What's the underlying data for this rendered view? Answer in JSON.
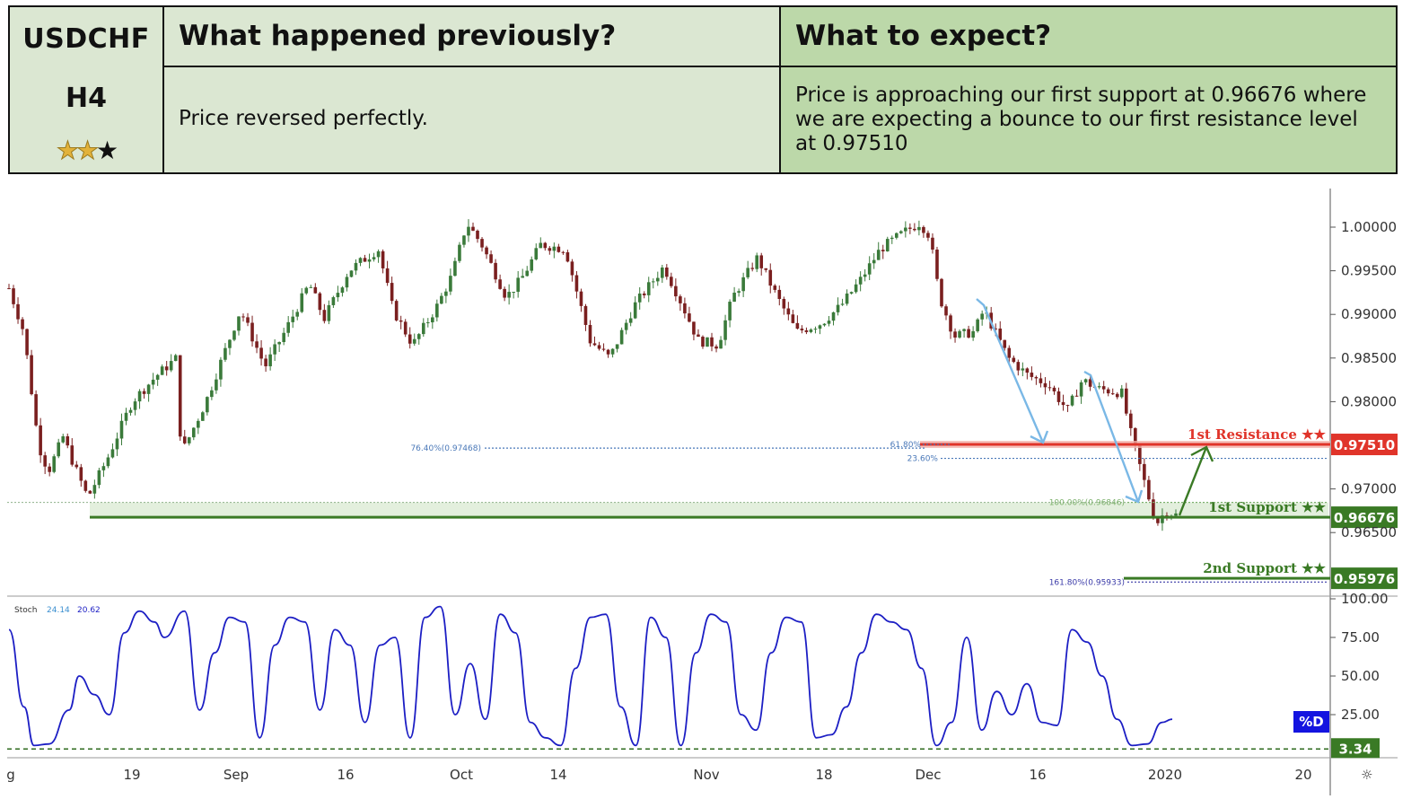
{
  "header": {
    "symbol": "USDCHF",
    "timeframe": "H4",
    "rating": {
      "filled": 2,
      "total": 3
    },
    "previous": {
      "title": "What happened previously?",
      "text": "Price reversed perfectly."
    },
    "expect": {
      "title": "What to expect?",
      "text": "Price is approaching our first support at 0.96676 where we are expecting a bounce to our first resistance level at 0.97510"
    }
  },
  "chart_data": {
    "type": "candlestick",
    "instrument": "USDCHF",
    "y_ticks": [
      "1.00000",
      "0.99500",
      "0.99000",
      "0.98500",
      "0.98000",
      "0.97000",
      "0.96500"
    ],
    "ylim": [
      0.9565,
      1.004
    ],
    "x_ticks": [
      "g",
      "19",
      "Sep",
      "16",
      "Oct",
      "14",
      "Nov",
      "18",
      "Dec",
      "16",
      "2020",
      "20"
    ],
    "price_path": [
      {
        "x": 0,
        "y": 0.993
      },
      {
        "x": 3,
        "y": 0.988
      },
      {
        "x": 6,
        "y": 0.975
      },
      {
        "x": 8,
        "y": 0.972
      },
      {
        "x": 11,
        "y": 0.976
      },
      {
        "x": 13,
        "y": 0.973
      },
      {
        "x": 16,
        "y": 0.969
      },
      {
        "x": 20,
        "y": 0.9735
      },
      {
        "x": 25,
        "y": 0.98
      },
      {
        "x": 30,
        "y": 0.983
      },
      {
        "x": 34,
        "y": 0.985
      },
      {
        "x": 35,
        "y": 0.974
      },
      {
        "x": 40,
        "y": 0.98
      },
      {
        "x": 47,
        "y": 0.9905
      },
      {
        "x": 52,
        "y": 0.984
      },
      {
        "x": 56,
        "y": 0.988
      },
      {
        "x": 61,
        "y": 0.9935
      },
      {
        "x": 64,
        "y": 0.9895
      },
      {
        "x": 69,
        "y": 0.995
      },
      {
        "x": 75,
        "y": 0.9975
      },
      {
        "x": 78,
        "y": 0.9905
      },
      {
        "x": 82,
        "y": 0.9865
      },
      {
        "x": 87,
        "y": 0.991
      },
      {
        "x": 90,
        "y": 0.9945
      },
      {
        "x": 93,
        "y": 1.0005
      },
      {
        "x": 96,
        "y": 0.998
      },
      {
        "x": 101,
        "y": 0.992
      },
      {
        "x": 104,
        "y": 0.994
      },
      {
        "x": 108,
        "y": 0.998
      },
      {
        "x": 113,
        "y": 0.9975
      },
      {
        "x": 118,
        "y": 0.987
      },
      {
        "x": 122,
        "y": 0.985
      },
      {
        "x": 127,
        "y": 0.991
      },
      {
        "x": 133,
        "y": 0.9955
      },
      {
        "x": 136,
        "y": 0.992
      },
      {
        "x": 140,
        "y": 0.987
      },
      {
        "x": 144,
        "y": 0.9865
      },
      {
        "x": 147,
        "y": 0.992
      },
      {
        "x": 152,
        "y": 0.9965
      },
      {
        "x": 156,
        "y": 0.992
      },
      {
        "x": 160,
        "y": 0.988
      },
      {
        "x": 165,
        "y": 0.989
      },
      {
        "x": 169,
        "y": 0.991
      },
      {
        "x": 173,
        "y": 0.994
      },
      {
        "x": 177,
        "y": 0.9975
      },
      {
        "x": 182,
        "y": 0.9995
      },
      {
        "x": 185,
        "y": 1.0005
      },
      {
        "x": 187,
        "y": 0.999
      },
      {
        "x": 189,
        "y": 0.992
      },
      {
        "x": 192,
        "y": 0.9875
      },
      {
        "x": 196,
        "y": 0.988
      },
      {
        "x": 198,
        "y": 0.9905
      },
      {
        "x": 203,
        "y": 0.985
      },
      {
        "x": 207,
        "y": 0.983
      },
      {
        "x": 211,
        "y": 0.982
      },
      {
        "x": 215,
        "y": 0.979
      },
      {
        "x": 218,
        "y": 0.9825
      },
      {
        "x": 221,
        "y": 0.9815
      },
      {
        "x": 226,
        "y": 0.981
      },
      {
        "x": 228,
        "y": 0.976
      },
      {
        "x": 230,
        "y": 0.972
      },
      {
        "x": 233,
        "y": 0.966
      },
      {
        "x": 235,
        "y": 0.9675
      },
      {
        "x": 237,
        "y": 0.967
      }
    ],
    "fib_levels": [
      {
        "label": "76.40%(0.97468)",
        "value": 0.97468
      },
      {
        "label": "61.80%",
        "value": 0.9751
      },
      {
        "label": "23.60%",
        "value": 0.9735
      },
      {
        "label": "100.00%(0.96846)",
        "value": 0.96846
      },
      {
        "label": "161.80%(0.95933)",
        "value": 0.95933
      }
    ],
    "levels": [
      {
        "name": "1st Resistance ★★",
        "value": "0.97510",
        "color": "#e0342a"
      },
      {
        "name": "1st Support ★★",
        "value": "0.96676",
        "color": "#3a7a25"
      },
      {
        "name": "2nd Support ★★",
        "value": "0.95976",
        "color": "#3a7a25"
      }
    ],
    "oscillator": {
      "name": "Stoch",
      "k_value": "24.14",
      "d_value": "20.62",
      "y_ticks": [
        "100.00",
        "75.00",
        "50.00",
        "25.00"
      ],
      "ylim": [
        0,
        100
      ],
      "current_label": "%D",
      "marker_level": "3.34",
      "line_color": "#1c1ec4",
      "values": [
        {
          "x": 0,
          "y": 80
        },
        {
          "x": 3,
          "y": 30
        },
        {
          "x": 5,
          "y": 5
        },
        {
          "x": 8,
          "y": 6
        },
        {
          "x": 12,
          "y": 28
        },
        {
          "x": 14,
          "y": 50
        },
        {
          "x": 17,
          "y": 38
        },
        {
          "x": 20,
          "y": 25
        },
        {
          "x": 23,
          "y": 78
        },
        {
          "x": 26,
          "y": 92
        },
        {
          "x": 29,
          "y": 85
        },
        {
          "x": 31,
          "y": 75
        },
        {
          "x": 35,
          "y": 92
        },
        {
          "x": 38,
          "y": 28
        },
        {
          "x": 41,
          "y": 65
        },
        {
          "x": 44,
          "y": 88
        },
        {
          "x": 47,
          "y": 85
        },
        {
          "x": 50,
          "y": 10
        },
        {
          "x": 53,
          "y": 70
        },
        {
          "x": 56,
          "y": 88
        },
        {
          "x": 59,
          "y": 85
        },
        {
          "x": 62,
          "y": 28
        },
        {
          "x": 65,
          "y": 80
        },
        {
          "x": 68,
          "y": 70
        },
        {
          "x": 71,
          "y": 20
        },
        {
          "x": 74,
          "y": 70
        },
        {
          "x": 77,
          "y": 75
        },
        {
          "x": 80,
          "y": 10
        },
        {
          "x": 83,
          "y": 88
        },
        {
          "x": 86,
          "y": 95
        },
        {
          "x": 89,
          "y": 25
        },
        {
          "x": 92,
          "y": 58
        },
        {
          "x": 95,
          "y": 22
        },
        {
          "x": 98,
          "y": 90
        },
        {
          "x": 101,
          "y": 78
        },
        {
          "x": 104,
          "y": 20
        },
        {
          "x": 107,
          "y": 10
        },
        {
          "x": 110,
          "y": 5
        },
        {
          "x": 113,
          "y": 55
        },
        {
          "x": 116,
          "y": 88
        },
        {
          "x": 119,
          "y": 90
        },
        {
          "x": 122,
          "y": 30
        },
        {
          "x": 125,
          "y": 5
        },
        {
          "x": 128,
          "y": 88
        },
        {
          "x": 131,
          "y": 75
        },
        {
          "x": 134,
          "y": 5
        },
        {
          "x": 137,
          "y": 65
        },
        {
          "x": 140,
          "y": 90
        },
        {
          "x": 143,
          "y": 85
        },
        {
          "x": 146,
          "y": 25
        },
        {
          "x": 149,
          "y": 15
        },
        {
          "x": 152,
          "y": 65
        },
        {
          "x": 155,
          "y": 88
        },
        {
          "x": 158,
          "y": 85
        },
        {
          "x": 161,
          "y": 10
        },
        {
          "x": 164,
          "y": 12
        },
        {
          "x": 167,
          "y": 30
        },
        {
          "x": 170,
          "y": 65
        },
        {
          "x": 173,
          "y": 90
        },
        {
          "x": 176,
          "y": 85
        },
        {
          "x": 179,
          "y": 80
        },
        {
          "x": 182,
          "y": 55
        },
        {
          "x": 185,
          "y": 5
        },
        {
          "x": 188,
          "y": 20
        },
        {
          "x": 191,
          "y": 75
        },
        {
          "x": 194,
          "y": 15
        },
        {
          "x": 197,
          "y": 40
        },
        {
          "x": 200,
          "y": 25
        },
        {
          "x": 203,
          "y": 45
        },
        {
          "x": 206,
          "y": 20
        },
        {
          "x": 209,
          "y": 18
        },
        {
          "x": 212,
          "y": 80
        },
        {
          "x": 215,
          "y": 72
        },
        {
          "x": 218,
          "y": 50
        },
        {
          "x": 221,
          "y": 22
        },
        {
          "x": 224,
          "y": 5
        },
        {
          "x": 227,
          "y": 6
        },
        {
          "x": 230,
          "y": 20
        },
        {
          "x": 232,
          "y": 22
        }
      ]
    },
    "colors": {
      "up": "#3a7a3a",
      "down": "#7a1f1f",
      "annotation": "#7ab8e6",
      "projection": "#3a7a25"
    }
  }
}
